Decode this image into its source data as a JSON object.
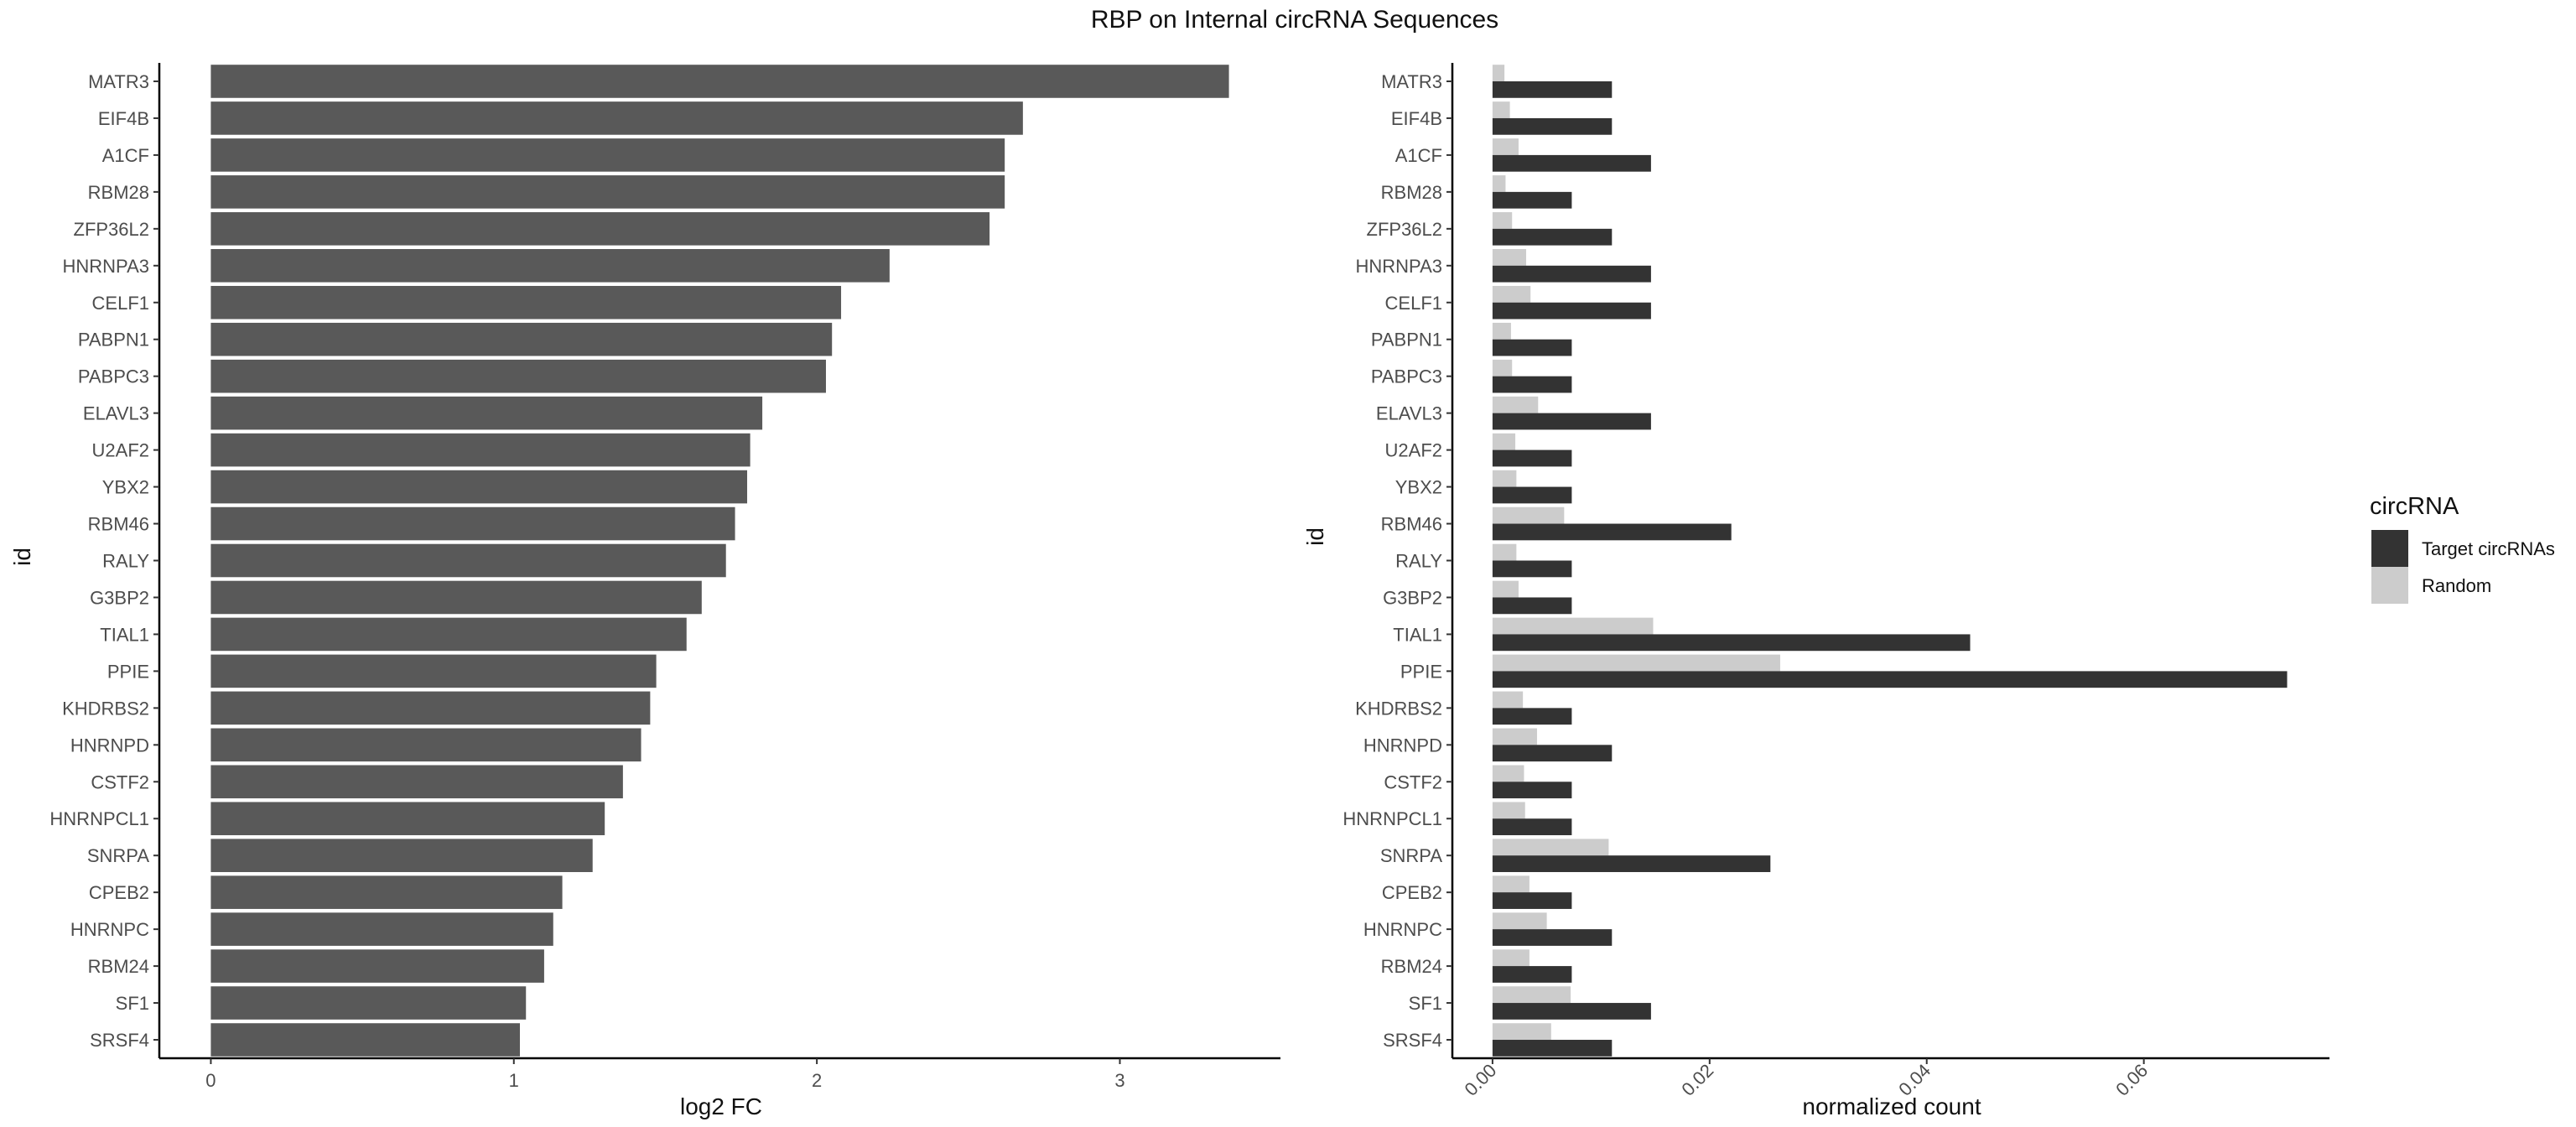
{
  "title": "RBP on Internal circRNA Sequences",
  "chart_data": [
    {
      "type": "bar",
      "orientation": "horizontal",
      "categories": [
        "MATR3",
        "EIF4B",
        "A1CF",
        "RBM28",
        "ZFP36L2",
        "HNRNPA3",
        "CELF1",
        "PABPN1",
        "PABPC3",
        "ELAVL3",
        "U2AF2",
        "YBX2",
        "RBM46",
        "RALY",
        "G3BP2",
        "TIAL1",
        "PPIE",
        "KHDRBS2",
        "HNRNPD",
        "CSTF2",
        "HNRNPCL1",
        "SNRPA",
        "CPEB2",
        "HNRNPC",
        "RBM24",
        "SF1",
        "SRSF4"
      ],
      "values": [
        3.36,
        2.68,
        2.62,
        2.62,
        2.57,
        2.24,
        2.08,
        2.05,
        2.03,
        1.82,
        1.78,
        1.77,
        1.73,
        1.7,
        1.62,
        1.57,
        1.47,
        1.45,
        1.42,
        1.36,
        1.3,
        1.26,
        1.16,
        1.13,
        1.1,
        1.04,
        1.02
      ],
      "xlabel": "log2 FC",
      "ylabel": "id",
      "xlim": [
        -0.17,
        3.53
      ],
      "xticks": [
        0,
        1,
        2,
        3
      ],
      "color": "#595959",
      "grid": false
    },
    {
      "type": "bar",
      "orientation": "horizontal",
      "categories": [
        "MATR3",
        "EIF4B",
        "A1CF",
        "RBM28",
        "ZFP36L2",
        "HNRNPA3",
        "CELF1",
        "PABPN1",
        "PABPC3",
        "ELAVL3",
        "U2AF2",
        "YBX2",
        "RBM46",
        "RALY",
        "G3BP2",
        "TIAL1",
        "PPIE",
        "KHDRBS2",
        "HNRNPD",
        "CSTF2",
        "HNRNPCL1",
        "SNRPA",
        "CPEB2",
        "HNRNPC",
        "RBM24",
        "SF1",
        "SRSF4"
      ],
      "series": [
        {
          "name": "Target circRNAs",
          "color": "#333333",
          "values": [
            0.011,
            0.011,
            0.0146,
            0.0073,
            0.011,
            0.0146,
            0.0146,
            0.0073,
            0.0073,
            0.0146,
            0.0073,
            0.0073,
            0.022,
            0.0073,
            0.0073,
            0.044,
            0.0732,
            0.0073,
            0.011,
            0.0073,
            0.0073,
            0.0256,
            0.0073,
            0.011,
            0.0073,
            0.0146,
            0.011
          ]
        },
        {
          "name": "Random",
          "color": "#cccccc",
          "values": [
            0.0011,
            0.0016,
            0.0024,
            0.0012,
            0.0018,
            0.0031,
            0.0035,
            0.0017,
            0.0018,
            0.0042,
            0.0021,
            0.0022,
            0.0066,
            0.0022,
            0.0024,
            0.0148,
            0.0265,
            0.0028,
            0.0041,
            0.0029,
            0.003,
            0.0107,
            0.0034,
            0.005,
            0.0034,
            0.0072,
            0.0054
          ]
        }
      ],
      "xlabel": "normalized count",
      "ylabel": "id",
      "xlim": [
        -0.0037,
        0.0771
      ],
      "xticks": [
        0.0,
        0.02,
        0.04,
        0.06
      ],
      "xtick_labels": [
        "0.00",
        "0.02",
        "0.04",
        "0.06"
      ],
      "grid": false
    }
  ],
  "legend": {
    "title": "circRNA",
    "items": [
      {
        "label": "Target circRNAs",
        "color": "#333333"
      },
      {
        "label": "Random",
        "color": "#cccccc"
      }
    ],
    "position": "right"
  }
}
